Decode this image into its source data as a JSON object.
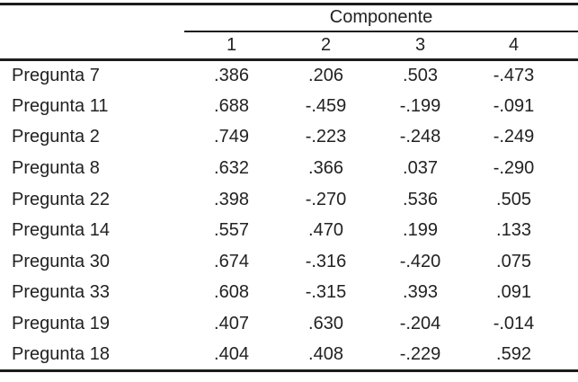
{
  "table": {
    "group_header": "Componente",
    "column_headers": [
      "1",
      "2",
      "3",
      "4"
    ],
    "rows": [
      {
        "label": "Pregunta 7",
        "values": [
          ".386",
          ".206",
          ".503",
          "-.473"
        ]
      },
      {
        "label": "Pregunta 11",
        "values": [
          ".688",
          "-.459",
          "-.199",
          "-.091"
        ]
      },
      {
        "label": "Pregunta 2",
        "values": [
          ".749",
          "-.223",
          "-.248",
          "-.249"
        ]
      },
      {
        "label": "Pregunta 8",
        "values": [
          ".632",
          ".366",
          ".037",
          "-.290"
        ]
      },
      {
        "label": "Pregunta 22",
        "values": [
          ".398",
          "-.270",
          ".536",
          ".505"
        ]
      },
      {
        "label": "Pregunta 14",
        "values": [
          ".557",
          ".470",
          ".199",
          ".133"
        ]
      },
      {
        "label": "Pregunta 30",
        "values": [
          ".674",
          "-.316",
          "-.420",
          ".075"
        ]
      },
      {
        "label": "Pregunta 33",
        "values": [
          ".608",
          "-.315",
          ".393",
          ".091"
        ]
      },
      {
        "label": "Pregunta 19",
        "values": [
          ".407",
          ".630",
          "-.204",
          "-.014"
        ]
      },
      {
        "label": "Pregunta 18",
        "values": [
          ".404",
          ".408",
          "-.229",
          ".592"
        ]
      }
    ]
  },
  "colors": {
    "text": "#222222",
    "line": "#1c1c1c",
    "background": "#ffffff"
  },
  "chart_data": {
    "type": "table",
    "title": "Componente",
    "group_header": "Componente",
    "columns": [
      "1",
      "2",
      "3",
      "4"
    ],
    "row_labels": [
      "Pregunta 7",
      "Pregunta 11",
      "Pregunta 2",
      "Pregunta 8",
      "Pregunta 22",
      "Pregunta 14",
      "Pregunta 30",
      "Pregunta 33",
      "Pregunta 19",
      "Pregunta 18"
    ],
    "values": [
      [
        0.386,
        0.206,
        0.503,
        -0.473
      ],
      [
        0.688,
        -0.459,
        -0.199,
        -0.091
      ],
      [
        0.749,
        -0.223,
        -0.248,
        -0.249
      ],
      [
        0.632,
        0.366,
        0.037,
        -0.29
      ],
      [
        0.398,
        -0.27,
        0.536,
        0.505
      ],
      [
        0.557,
        0.47,
        0.199,
        0.133
      ],
      [
        0.674,
        -0.316,
        -0.42,
        0.075
      ],
      [
        0.608,
        -0.315,
        0.393,
        0.091
      ],
      [
        0.407,
        0.63,
        -0.204,
        -0.014
      ],
      [
        0.404,
        0.408,
        -0.229,
        0.592
      ]
    ]
  }
}
